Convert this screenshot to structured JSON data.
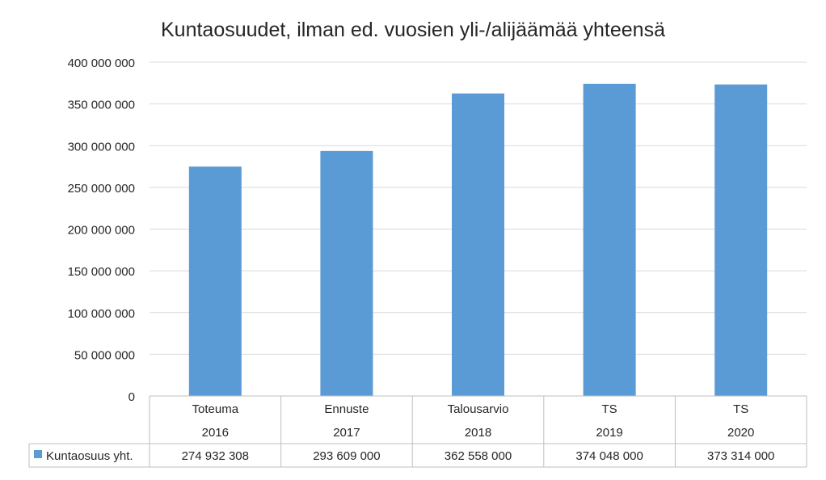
{
  "chart_data": {
    "type": "bar",
    "title": "Kuntaosuudet, ilman ed. vuosien yli-/alijäämää yhteensä",
    "categories": [
      {
        "label": "Toteuma",
        "year": "2016"
      },
      {
        "label": "Ennuste",
        "year": "2017"
      },
      {
        "label": "Talousarvio",
        "year": "2018"
      },
      {
        "label": "TS",
        "year": "2019"
      },
      {
        "label": "TS",
        "year": "2020"
      }
    ],
    "series": [
      {
        "name": "Kuntaosuus yht.",
        "color": "#5b9bd5",
        "values": [
          274932308,
          293609000,
          362558000,
          374048000,
          373314000
        ],
        "value_labels": [
          "274 932 308",
          "293 609 000",
          "362 558 000",
          "374 048 000",
          "373 314 000"
        ]
      }
    ],
    "ylim": [
      0,
      400000000
    ],
    "yticks": [
      0,
      50000000,
      100000000,
      150000000,
      200000000,
      250000000,
      300000000,
      350000000,
      400000000
    ],
    "ytick_labels": [
      "0",
      "50 000 000",
      "100 000 000",
      "150 000 000",
      "200 000 000",
      "250 000 000",
      "300 000 000",
      "350 000 000",
      "400 000 000"
    ],
    "grid": true,
    "legend": "data-table"
  }
}
